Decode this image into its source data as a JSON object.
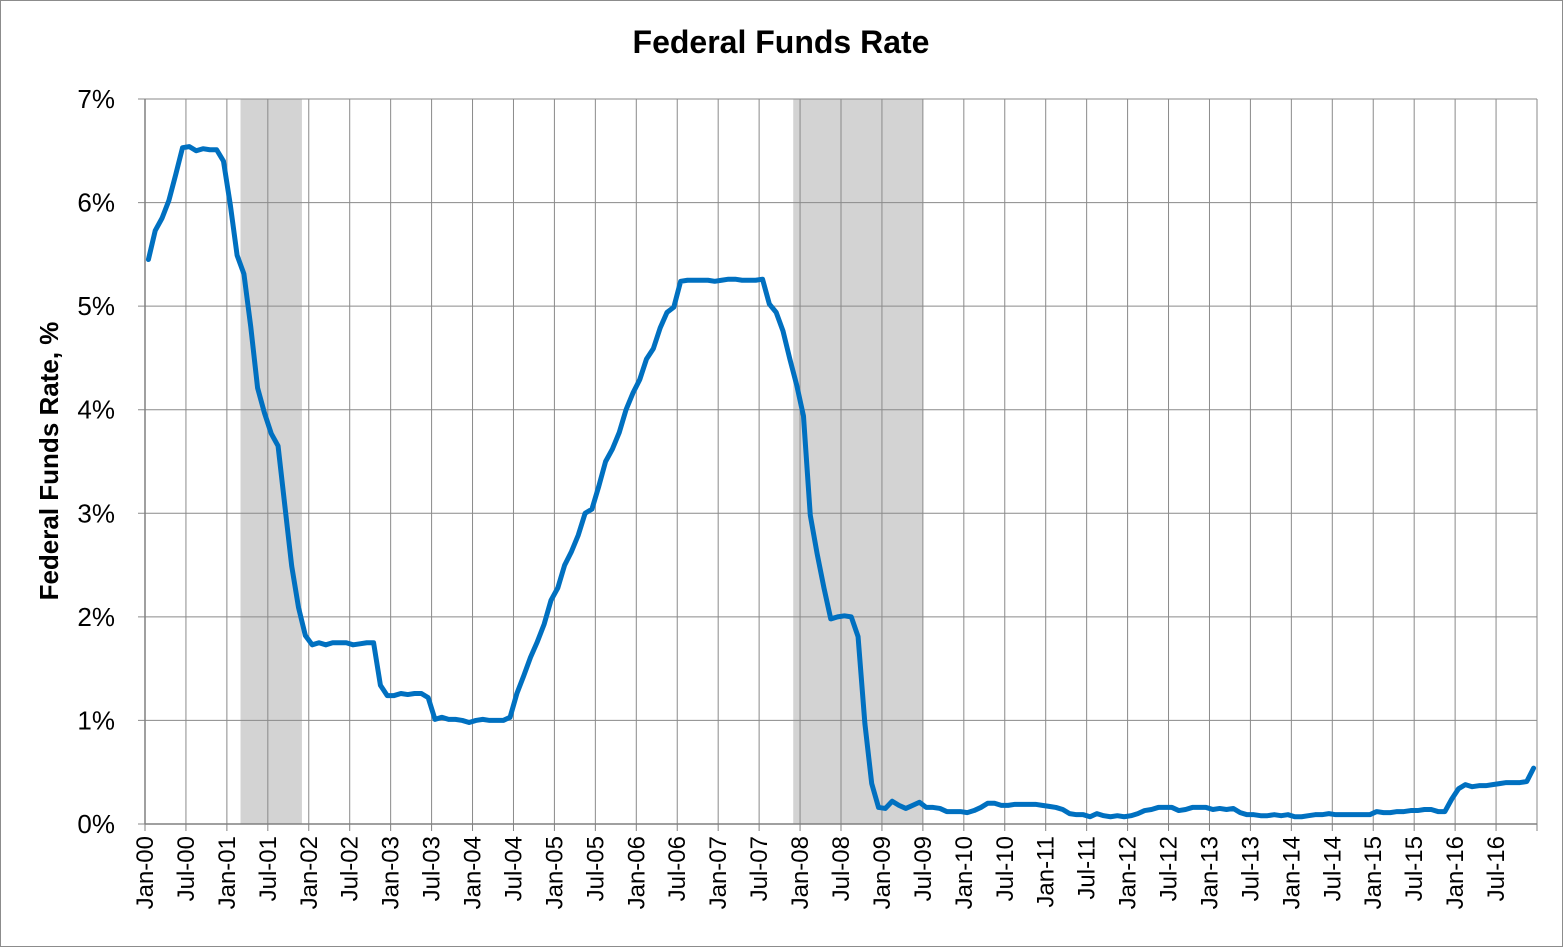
{
  "chart_data": {
    "type": "line",
    "title": "Federal Funds Rate",
    "ylabel": "Federal Funds Rate, %",
    "xlabel": "",
    "ylim": [
      0,
      7
    ],
    "y_ticks": [
      "0%",
      "1%",
      "2%",
      "3%",
      "4%",
      "5%",
      "6%",
      "7%"
    ],
    "x_ticks": [
      "Jan-00",
      "Jul-00",
      "Jan-01",
      "Jul-01",
      "Jan-02",
      "Jul-02",
      "Jan-03",
      "Jul-03",
      "Jan-04",
      "Jul-04",
      "Jan-05",
      "Jul-05",
      "Jan-06",
      "Jul-06",
      "Jan-07",
      "Jul-07",
      "Jan-08",
      "Jul-08",
      "Jan-09",
      "Jul-09",
      "Jan-10",
      "Jul-10",
      "Jan-11",
      "Jul-11",
      "Jan-12",
      "Jul-12",
      "Jan-13",
      "Jul-13",
      "Jan-14",
      "Jul-14",
      "Jan-15",
      "Jul-15",
      "Jan-16",
      "Jul-16"
    ],
    "grid": true,
    "line_color": "#0070C0",
    "recession_color": "#D3D3D3",
    "recessions": [
      [
        "Mar-01",
        "Nov-01"
      ],
      [
        "Dec-07",
        "Jun-09"
      ]
    ],
    "series": [
      {
        "values": [
          5.45,
          5.73,
          5.85,
          6.02,
          6.27,
          6.53,
          6.54,
          6.5,
          6.52,
          6.51,
          6.51,
          6.4,
          5.98,
          5.49,
          5.31,
          4.8,
          4.21,
          3.97,
          3.77,
          3.65,
          3.07,
          2.49,
          2.09,
          1.82,
          1.73,
          1.75,
          1.73,
          1.75,
          1.75,
          1.75,
          1.73,
          1.74,
          1.75,
          1.75,
          1.34,
          1.24,
          1.24,
          1.26,
          1.25,
          1.26,
          1.26,
          1.22,
          1.01,
          1.03,
          1.01,
          1.01,
          1.0,
          0.98,
          1.0,
          1.01,
          1.0,
          1.0,
          1.0,
          1.03,
          1.26,
          1.43,
          1.61,
          1.76,
          1.93,
          2.16,
          2.28,
          2.5,
          2.63,
          2.79,
          3.0,
          3.04,
          3.26,
          3.5,
          3.62,
          3.78,
          4.0,
          4.16,
          4.29,
          4.49,
          4.59,
          4.79,
          4.94,
          4.99,
          5.24,
          5.25,
          5.25,
          5.25,
          5.25,
          5.24,
          5.25,
          5.26,
          5.26,
          5.25,
          5.25,
          5.25,
          5.26,
          5.02,
          4.94,
          4.76,
          4.49,
          4.24,
          3.94,
          2.98,
          2.61,
          2.28,
          1.98,
          2.0,
          2.01,
          2.0,
          1.81,
          0.97,
          0.39,
          0.16,
          0.15,
          0.22,
          0.18,
          0.15,
          0.18,
          0.21,
          0.16,
          0.16,
          0.15,
          0.12,
          0.12,
          0.12,
          0.11,
          0.13,
          0.16,
          0.2,
          0.2,
          0.18,
          0.18,
          0.19,
          0.19,
          0.19,
          0.19,
          0.18,
          0.17,
          0.16,
          0.14,
          0.1,
          0.09,
          0.09,
          0.07,
          0.1,
          0.08,
          0.07,
          0.08,
          0.07,
          0.08,
          0.1,
          0.13,
          0.14,
          0.16,
          0.16,
          0.16,
          0.13,
          0.14,
          0.16,
          0.16,
          0.16,
          0.14,
          0.15,
          0.14,
          0.15,
          0.11,
          0.09,
          0.09,
          0.08,
          0.08,
          0.09,
          0.08,
          0.09,
          0.07,
          0.07,
          0.08,
          0.09,
          0.09,
          0.1,
          0.09,
          0.09,
          0.09,
          0.09,
          0.09,
          0.09,
          0.12,
          0.11,
          0.11,
          0.12,
          0.12,
          0.13,
          0.13,
          0.14,
          0.14,
          0.12,
          0.12,
          0.24,
          0.34,
          0.38,
          0.36,
          0.37,
          0.37,
          0.38,
          0.39,
          0.4,
          0.4,
          0.4,
          0.41,
          0.54
        ]
      }
    ]
  }
}
